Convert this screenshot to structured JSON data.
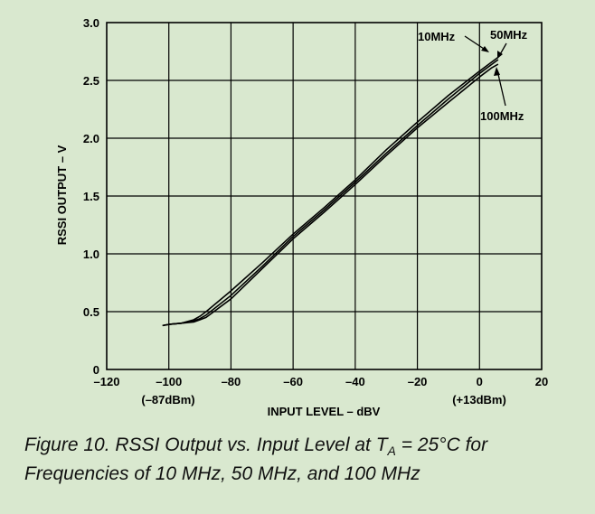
{
  "chart_data": {
    "type": "line",
    "xlabel": "INPUT LEVEL – dBV",
    "ylabel": "RSSI OUTPUT – V",
    "xlim": [
      -120,
      20
    ],
    "ylim": [
      0,
      3.0
    ],
    "x_ticks": [
      -120,
      -100,
      -80,
      -60,
      -40,
      -20,
      0,
      20
    ],
    "x_tick_labels": [
      "–120",
      "–100",
      "–80",
      "–60",
      "–40",
      "–20",
      "0",
      "20"
    ],
    "y_ticks": [
      0,
      0.5,
      1.0,
      1.5,
      2.0,
      2.5,
      3.0
    ],
    "y_tick_labels": [
      "0",
      "0.5",
      "1.0",
      "1.5",
      "2.0",
      "2.5",
      "3.0"
    ],
    "sub_annotations": [
      "(–87dBm)",
      "(+13dBm)"
    ],
    "grid": true,
    "series": [
      {
        "name": "10MHz",
        "x": [
          -102,
          -100,
          -96,
          -92,
          -90,
          -88,
          -80,
          -70,
          -60,
          -50,
          -40,
          -30,
          -20,
          -10,
          0,
          4,
          6
        ],
        "y": [
          0.38,
          0.39,
          0.4,
          0.43,
          0.46,
          0.5,
          0.68,
          0.92,
          1.17,
          1.4,
          1.64,
          1.9,
          2.14,
          2.37,
          2.58,
          2.66,
          2.7
        ]
      },
      {
        "name": "50MHz",
        "x": [
          -102,
          -100,
          -96,
          -92,
          -90,
          -88,
          -80,
          -70,
          -60,
          -50,
          -40,
          -30,
          -20,
          -10,
          0,
          4,
          6
        ],
        "y": [
          0.38,
          0.39,
          0.4,
          0.42,
          0.44,
          0.47,
          0.64,
          0.89,
          1.15,
          1.38,
          1.62,
          1.87,
          2.11,
          2.34,
          2.56,
          2.64,
          2.68
        ]
      },
      {
        "name": "100MHz",
        "x": [
          -102,
          -100,
          -96,
          -92,
          -90,
          -88,
          -80,
          -70,
          -60,
          -50,
          -40,
          -30,
          -20,
          -10,
          0,
          4,
          6
        ],
        "y": [
          0.38,
          0.39,
          0.4,
          0.41,
          0.43,
          0.45,
          0.61,
          0.87,
          1.13,
          1.36,
          1.6,
          1.85,
          2.09,
          2.31,
          2.53,
          2.61,
          2.64
        ]
      }
    ]
  },
  "caption": {
    "prefix": "Figure 10.  RSSI Output vs. Input Level at T",
    "subscript": "A",
    "suffix": " = 25°C for Frequencies of 10 MHz, 50 MHz, and 100 MHz"
  },
  "colors": {
    "background": "#d9e8cf",
    "line": "#000000"
  }
}
